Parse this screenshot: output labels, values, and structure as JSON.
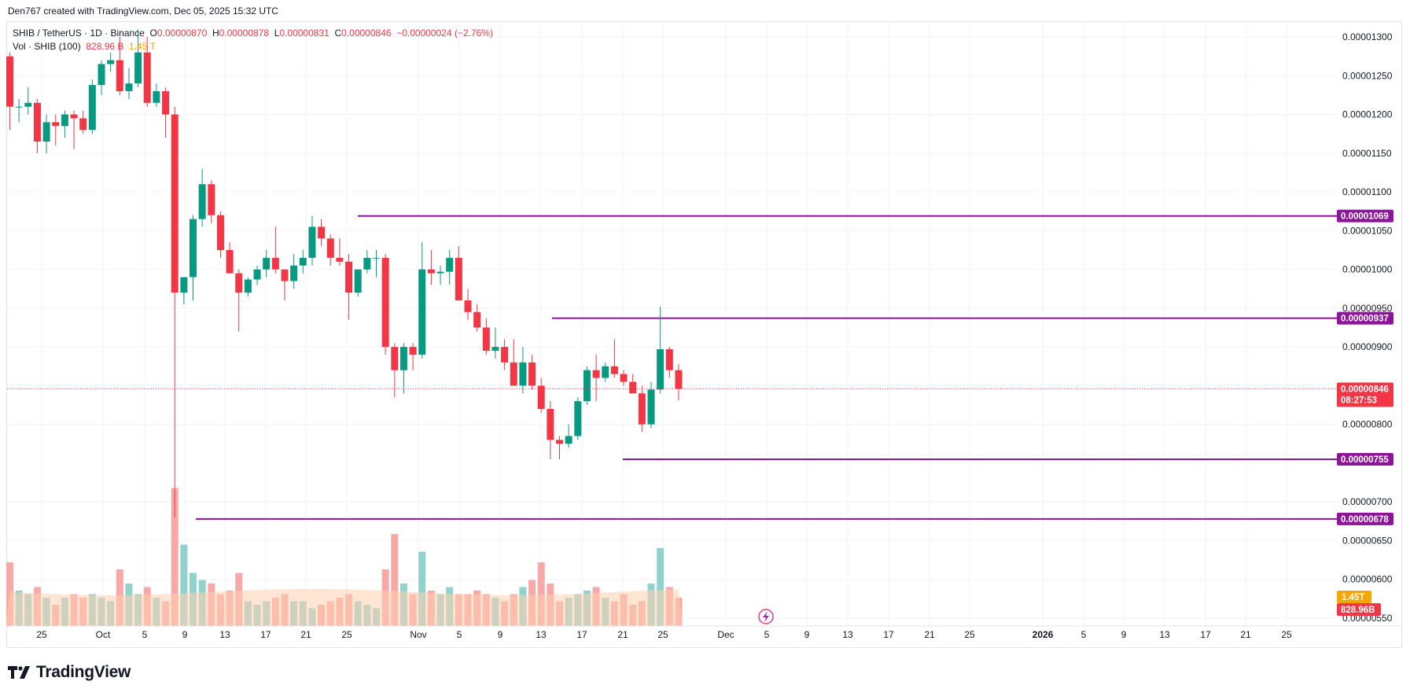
{
  "header": {
    "credit": "Den767 created with TradingView.com, Dec 05, 2025 15:32 UTC"
  },
  "legend": {
    "symbol": "SHIB / TetherUS · 1D · Binance",
    "open_label": "O",
    "open": "0.00000870",
    "high_label": "H",
    "high": "0.00000878",
    "low_label": "L",
    "low": "0.00000831",
    "close_label": "C",
    "close": "0.00000846",
    "change": "−0.00000024 (−2.76%)",
    "vol_label": "Vol · SHIB (100)",
    "vol_value": "828.96 B",
    "vol_ma": "1.45 T"
  },
  "brand": {
    "name": "TradingView",
    "logo": "tradingview-logo-icon"
  },
  "colors": {
    "up": "#089981",
    "down": "#f23645",
    "level": "#8e1599",
    "price_line": "#f23645",
    "vol_up": "#92d2cc",
    "vol_down": "#f7a9a7",
    "vol_ma": "#ffcfb0"
  },
  "chart_data": {
    "type": "candlestick",
    "symbol": "SHIB/USDT",
    "timeframe": "1D",
    "y_axis": {
      "ticks": [
        "0.00001300",
        "0.00001250",
        "0.00001200",
        "0.00001150",
        "0.00001100",
        "0.00001050",
        "0.00001000",
        "0.00000950",
        "0.00000900",
        "0.00000800",
        "0.00000700",
        "0.00000650",
        "0.00000600",
        "0.00000550"
      ],
      "range": [
        5.3e-06,
        1.32e-05
      ]
    },
    "x_axis": {
      "labels": [
        "25",
        "Oct",
        "5",
        "9",
        "13",
        "17",
        "21",
        "25",
        "Nov",
        "5",
        "9",
        "13",
        "17",
        "21",
        "25",
        "Dec",
        "5",
        "9",
        "13",
        "17",
        "21",
        "25",
        "2026",
        "5",
        "9",
        "13",
        "17",
        "21",
        "25"
      ]
    },
    "candles": [
      {
        "o": 1.275,
        "h": 1.28,
        "l": 1.18,
        "c": 1.21
      },
      {
        "o": 1.21,
        "h": 1.22,
        "l": 1.19,
        "c": 1.21
      },
      {
        "o": 1.21,
        "h": 1.235,
        "l": 1.2,
        "c": 1.215
      },
      {
        "o": 1.215,
        "h": 1.22,
        "l": 1.15,
        "c": 1.165
      },
      {
        "o": 1.165,
        "h": 1.2,
        "l": 1.15,
        "c": 1.19
      },
      {
        "o": 1.19,
        "h": 1.2,
        "l": 1.16,
        "c": 1.185
      },
      {
        "o": 1.185,
        "h": 1.205,
        "l": 1.17,
        "c": 1.2
      },
      {
        "o": 1.2,
        "h": 1.205,
        "l": 1.155,
        "c": 1.195
      },
      {
        "o": 1.195,
        "h": 1.205,
        "l": 1.175,
        "c": 1.18
      },
      {
        "o": 1.18,
        "h": 1.245,
        "l": 1.175,
        "c": 1.238
      },
      {
        "o": 1.238,
        "h": 1.27,
        "l": 1.225,
        "c": 1.265
      },
      {
        "o": 1.265,
        "h": 1.28,
        "l": 1.255,
        "c": 1.27
      },
      {
        "o": 1.27,
        "h": 1.3,
        "l": 1.225,
        "c": 1.23
      },
      {
        "o": 1.23,
        "h": 1.26,
        "l": 1.22,
        "c": 1.24
      },
      {
        "o": 1.24,
        "h": 1.31,
        "l": 1.235,
        "c": 1.28
      },
      {
        "o": 1.28,
        "h": 1.3,
        "l": 1.21,
        "c": 1.215
      },
      {
        "o": 1.215,
        "h": 1.24,
        "l": 1.21,
        "c": 1.23
      },
      {
        "o": 1.23,
        "h": 1.235,
        "l": 1.17,
        "c": 1.2
      },
      {
        "o": 1.2,
        "h": 1.21,
        "l": 0.68,
        "c": 0.97
      },
      {
        "o": 0.97,
        "h": 0.99,
        "l": 0.955,
        "c": 0.99
      },
      {
        "o": 0.99,
        "h": 1.07,
        "l": 0.96,
        "c": 1.065
      },
      {
        "o": 1.065,
        "h": 1.13,
        "l": 1.055,
        "c": 1.11
      },
      {
        "o": 1.11,
        "h": 1.115,
        "l": 1.06,
        "c": 1.07
      },
      {
        "o": 1.07,
        "h": 1.075,
        "l": 1.015,
        "c": 1.025
      },
      {
        "o": 1.025,
        "h": 1.035,
        "l": 0.995,
        "c": 0.995
      },
      {
        "o": 0.995,
        "h": 1.0,
        "l": 0.92,
        "c": 0.97
      },
      {
        "o": 0.97,
        "h": 0.99,
        "l": 0.965,
        "c": 0.987
      },
      {
        "o": 0.987,
        "h": 1.005,
        "l": 0.98,
        "c": 1.0
      },
      {
        "o": 1.0,
        "h": 1.025,
        "l": 0.99,
        "c": 1.015
      },
      {
        "o": 1.015,
        "h": 1.055,
        "l": 0.995,
        "c": 1.0
      },
      {
        "o": 1.0,
        "h": 1.0,
        "l": 0.96,
        "c": 0.985
      },
      {
        "o": 0.985,
        "h": 1.02,
        "l": 0.975,
        "c": 1.005
      },
      {
        "o": 1.005,
        "h": 1.025,
        "l": 0.995,
        "c": 1.015
      },
      {
        "o": 1.015,
        "h": 1.069,
        "l": 1.005,
        "c": 1.055
      },
      {
        "o": 1.055,
        "h": 1.065,
        "l": 1.03,
        "c": 1.04
      },
      {
        "o": 1.04,
        "h": 1.045,
        "l": 1.005,
        "c": 1.015
      },
      {
        "o": 1.015,
        "h": 1.04,
        "l": 1.005,
        "c": 1.01
      },
      {
        "o": 1.01,
        "h": 1.02,
        "l": 0.935,
        "c": 0.97
      },
      {
        "o": 0.97,
        "h": 1.0,
        "l": 0.965,
        "c": 1.0
      },
      {
        "o": 1.0,
        "h": 1.025,
        "l": 0.995,
        "c": 1.015
      },
      {
        "o": 1.015,
        "h": 1.025,
        "l": 0.99,
        "c": 1.015
      },
      {
        "o": 1.015,
        "h": 1.02,
        "l": 0.89,
        "c": 0.9
      },
      {
        "o": 0.9,
        "h": 0.905,
        "l": 0.835,
        "c": 0.87
      },
      {
        "o": 0.87,
        "h": 0.905,
        "l": 0.84,
        "c": 0.9
      },
      {
        "o": 0.9,
        "h": 0.905,
        "l": 0.87,
        "c": 0.89
      },
      {
        "o": 0.89,
        "h": 1.035,
        "l": 0.885,
        "c": 1.0
      },
      {
        "o": 1.0,
        "h": 1.025,
        "l": 0.98,
        "c": 0.995
      },
      {
        "o": 0.995,
        "h": 1.005,
        "l": 0.98,
        "c": 0.997
      },
      {
        "o": 0.997,
        "h": 1.025,
        "l": 0.98,
        "c": 1.015
      },
      {
        "o": 1.015,
        "h": 1.03,
        "l": 0.96,
        "c": 0.96
      },
      {
        "o": 0.96,
        "h": 0.975,
        "l": 0.935,
        "c": 0.945
      },
      {
        "o": 0.945,
        "h": 0.955,
        "l": 0.92,
        "c": 0.925
      },
      {
        "o": 0.925,
        "h": 0.937,
        "l": 0.89,
        "c": 0.895
      },
      {
        "o": 0.895,
        "h": 0.925,
        "l": 0.885,
        "c": 0.9
      },
      {
        "o": 0.9,
        "h": 0.91,
        "l": 0.87,
        "c": 0.88
      },
      {
        "o": 0.88,
        "h": 0.91,
        "l": 0.85,
        "c": 0.85
      },
      {
        "o": 0.85,
        "h": 0.9,
        "l": 0.84,
        "c": 0.88
      },
      {
        "o": 0.88,
        "h": 0.89,
        "l": 0.845,
        "c": 0.85
      },
      {
        "o": 0.85,
        "h": 0.86,
        "l": 0.815,
        "c": 0.82
      },
      {
        "o": 0.82,
        "h": 0.83,
        "l": 0.755,
        "c": 0.78
      },
      {
        "o": 0.78,
        "h": 0.785,
        "l": 0.755,
        "c": 0.775
      },
      {
        "o": 0.775,
        "h": 0.8,
        "l": 0.77,
        "c": 0.785
      },
      {
        "o": 0.785,
        "h": 0.835,
        "l": 0.78,
        "c": 0.83
      },
      {
        "o": 0.83,
        "h": 0.875,
        "l": 0.825,
        "c": 0.87
      },
      {
        "o": 0.87,
        "h": 0.89,
        "l": 0.83,
        "c": 0.86
      },
      {
        "o": 0.86,
        "h": 0.88,
        "l": 0.855,
        "c": 0.875
      },
      {
        "o": 0.875,
        "h": 0.91,
        "l": 0.86,
        "c": 0.865
      },
      {
        "o": 0.865,
        "h": 0.87,
        "l": 0.85,
        "c": 0.855
      },
      {
        "o": 0.855,
        "h": 0.865,
        "l": 0.84,
        "c": 0.84
      },
      {
        "o": 0.84,
        "h": 0.85,
        "l": 0.79,
        "c": 0.8
      },
      {
        "o": 0.8,
        "h": 0.855,
        "l": 0.795,
        "c": 0.845
      },
      {
        "o": 0.845,
        "h": 0.952,
        "l": 0.84,
        "c": 0.897
      },
      {
        "o": 0.897,
        "h": 0.9,
        "l": 0.86,
        "c": 0.87
      },
      {
        "o": 0.87,
        "h": 0.878,
        "l": 0.831,
        "c": 0.846
      }
    ],
    "volume": {
      "values": [
        0.9,
        0.5,
        0.45,
        0.55,
        0.4,
        0.3,
        0.4,
        0.45,
        0.4,
        0.45,
        0.4,
        0.35,
        0.8,
        0.6,
        0.45,
        0.55,
        0.4,
        0.35,
        1.95,
        1.15,
        0.75,
        0.65,
        0.6,
        0.45,
        0.5,
        0.75,
        0.35,
        0.3,
        0.35,
        0.4,
        0.45,
        0.35,
        0.35,
        0.25,
        0.3,
        0.35,
        0.4,
        0.45,
        0.35,
        0.3,
        0.25,
        0.8,
        1.3,
        0.6,
        0.45,
        1.05,
        0.5,
        0.45,
        0.55,
        0.45,
        0.45,
        0.5,
        0.45,
        0.4,
        0.35,
        0.45,
        0.55,
        0.65,
        0.9,
        0.6,
        0.35,
        0.4,
        0.45,
        0.5,
        0.55,
        0.4,
        0.35,
        0.45,
        0.3,
        0.35,
        0.6,
        1.1,
        0.55,
        0.4
      ],
      "ma_last": "1.45T",
      "last": "828.96B"
    },
    "horizontal_levels": [
      {
        "value": 1.069e-05,
        "label": "0.00001069"
      },
      {
        "value": 9.37e-06,
        "label": "0.00000937"
      },
      {
        "value": 7.55e-06,
        "label": "0.00000755"
      },
      {
        "value": 6.78e-06,
        "label": "0.00000678"
      }
    ],
    "last_price": {
      "value": "0.00000846",
      "countdown": "08:27:53"
    }
  }
}
